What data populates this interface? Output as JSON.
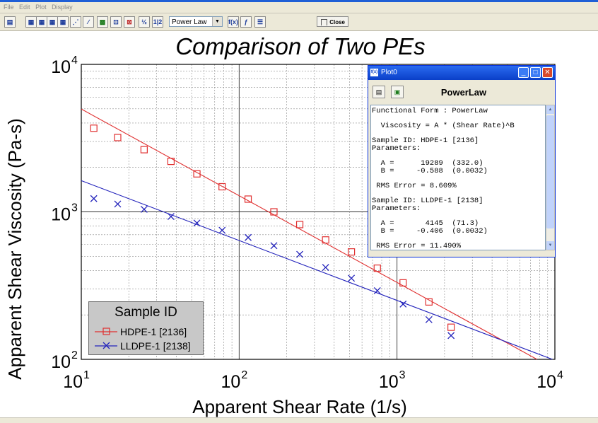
{
  "menu": [
    "File",
    "Edit",
    "Plot",
    "Display"
  ],
  "toolbar": {
    "model_select": "Power Law",
    "close_label": "Close",
    "half_label": "½",
    "onetwo_label": "1|2",
    "fx_label": "f(x)"
  },
  "chart_data": {
    "type": "scatter",
    "title": "Comparison of Two PEs",
    "xlabel": "Apparent Shear Rate (1/s)",
    "ylabel": "Apparent Shear Viscosity (Pa-s)",
    "xscale": "log",
    "yscale": "log",
    "xlim": [
      10,
      10000
    ],
    "ylim": [
      100,
      10000
    ],
    "x_ticks": [
      {
        "base": "10",
        "exp": "1"
      },
      {
        "base": "10",
        "exp": "2"
      },
      {
        "base": "10",
        "exp": "3"
      },
      {
        "base": "10",
        "exp": "4"
      }
    ],
    "y_ticks": [
      {
        "base": "10",
        "exp": "2"
      },
      {
        "base": "10",
        "exp": "3"
      },
      {
        "base": "10",
        "exp": "4"
      }
    ],
    "grid": true,
    "legend": {
      "title": "Sample ID",
      "placement": "bottom-left"
    },
    "series": [
      {
        "name": "HDPE-1 [2136]",
        "color": "#e03030",
        "marker": "square",
        "fit": {
          "A": 19289,
          "B": -0.588
        },
        "x": [
          12,
          17,
          25,
          37,
          54,
          78,
          114,
          166,
          242,
          353,
          514,
          750,
          1093,
          1593,
          2200
        ],
        "y": [
          3690,
          3190,
          2640,
          2200,
          1810,
          1480,
          1220,
          1000,
          820,
          645,
          535,
          415,
          330,
          245,
          165
        ]
      },
      {
        "name": "LLDPE-1 [2138]",
        "color": "#2222bb",
        "marker": "x",
        "fit": {
          "A": 4145,
          "B": -0.406
        },
        "x": [
          12,
          17,
          25,
          37,
          54,
          78,
          114,
          166,
          242,
          353,
          514,
          750,
          1093,
          1593,
          2200
        ],
        "y": [
          1230,
          1130,
          1040,
          930,
          840,
          750,
          670,
          590,
          515,
          420,
          355,
          292,
          237,
          186,
          145
        ]
      }
    ]
  },
  "dialog": {
    "title": "Plot0",
    "model_name": "PowerLaw",
    "fit_text": "Functional Form : PowerLaw\n\n  Viscosity = A * (Shear Rate)^B\n\nSample ID: HDPE-1 [2136]\nParameters:\n\n  A =      19289  (332.0)\n  B =     -0.588  (0.0032)\n\n RMS Error = 8.609%\n\nSample ID: LLDPE-1 [2138]\nParameters:\n\n  A =       4145  (71.3)\n  B =     -0.406  (0.0032)\n\n RMS Error = 11.490%"
  }
}
